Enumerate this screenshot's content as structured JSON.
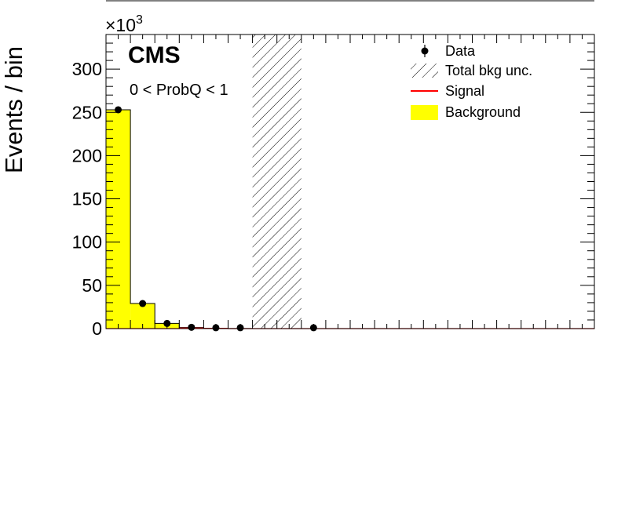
{
  "chart_data": {
    "type": "bar",
    "ylabel": "Events / bin",
    "y_multiplier": "×10",
    "y_multiplier_exp": "3",
    "ylim": [
      0,
      340
    ],
    "y_ticks": [
      "0",
      "50",
      "100",
      "150",
      "200",
      "250",
      "300"
    ],
    "grid": false,
    "legend_placement": "top-right",
    "experiment_label": "CMS",
    "annotation": "0 < ProbQ < 1",
    "bins": 20,
    "series": [
      {
        "name": "Background",
        "color": "#ffff00",
        "values": [
          253,
          29,
          6,
          1.2,
          0.4,
          0.1,
          0,
          0,
          0,
          0,
          0,
          0,
          0,
          0,
          0,
          0,
          0,
          0,
          0,
          0
        ]
      },
      {
        "name": "Signal",
        "color": "#ff0000",
        "values": [
          0,
          0,
          0,
          0.6,
          0.2,
          0,
          0,
          0,
          0,
          0,
          0,
          0,
          0,
          0,
          0,
          0,
          0,
          0,
          0,
          0
        ]
      },
      {
        "name": "Data",
        "color": "#000000",
        "points": [
          [
            0,
            253
          ],
          [
            1,
            29
          ],
          [
            2,
            6
          ],
          [
            3,
            1.5
          ],
          [
            4,
            1
          ],
          [
            5,
            1
          ],
          [
            8,
            1
          ]
        ]
      }
    ],
    "uncertainty": {
      "name": "Total bkg unc.",
      "bin_start": 6,
      "bin_end": 8,
      "y_low": 0,
      "y_high": 340
    },
    "legend": [
      {
        "key": "data",
        "label": "Data"
      },
      {
        "key": "unc",
        "label": "Total bkg unc."
      },
      {
        "key": "signal",
        "label": "Signal"
      },
      {
        "key": "background",
        "label": "Background"
      }
    ]
  }
}
